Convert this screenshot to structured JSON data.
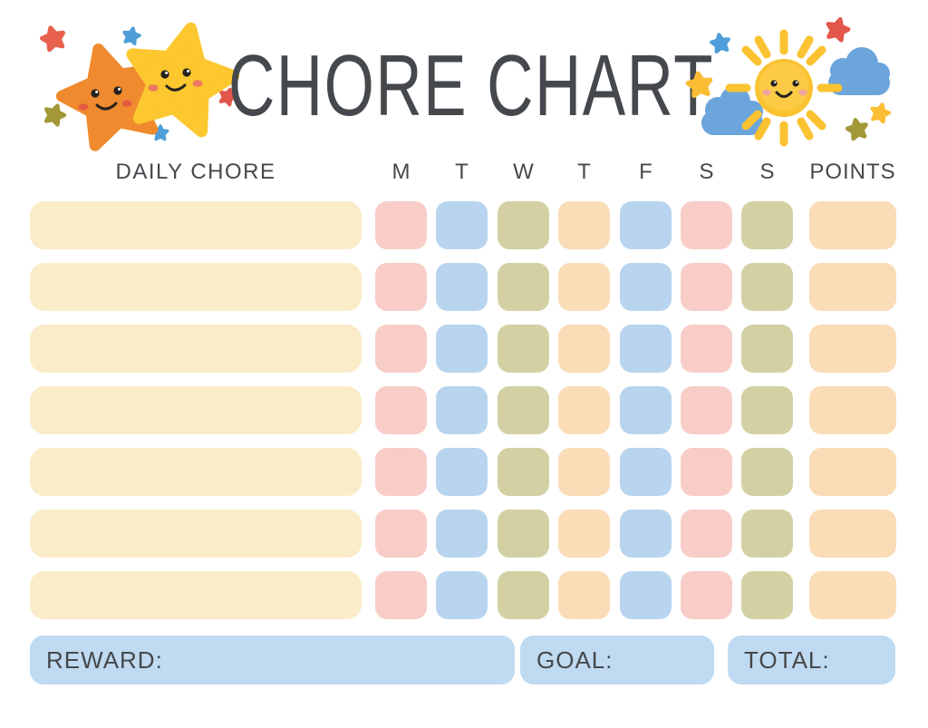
{
  "page": {
    "background_color": "#FFFFFF",
    "text_color": "#45484C"
  },
  "header": {
    "title": "CHORE CHART"
  },
  "table": {
    "chore_column_label": "DAILY CHORE",
    "day_headers": [
      "M",
      "T",
      "W",
      "T",
      "F",
      "S",
      "S"
    ],
    "points_label": "POINTS",
    "chore_bar_color": "#FAECC8",
    "day_cell_colors": [
      "#F8CDC8",
      "#B8D4EE",
      "#D3D1A4",
      "#FADCB7",
      "#B8D4EE",
      "#F8CDC8",
      "#D3D1A4"
    ],
    "points_cell_color": "#FADCB7",
    "rows": [
      {
        "chore": "",
        "points": ""
      },
      {
        "chore": "",
        "points": ""
      },
      {
        "chore": "",
        "points": ""
      },
      {
        "chore": "",
        "points": ""
      },
      {
        "chore": "",
        "points": ""
      },
      {
        "chore": "",
        "points": ""
      },
      {
        "chore": "",
        "points": ""
      }
    ]
  },
  "footer": {
    "reward_label": "REWARD:",
    "goal_label": "GOAL:",
    "total_label": "TOTAL:",
    "box_color": "#BFDAF1",
    "reward_value": "",
    "goal_value": "",
    "total_value": ""
  },
  "illustrations": {
    "left": "two-smiling-stars",
    "right": "smiling-sun-with-clouds",
    "palette": {
      "orange_star": "#EF8A2E",
      "yellow_star": "#FCC72F",
      "small_blue": "#4F9DD9",
      "small_red": "#E2574A",
      "small_olive": "#A29838",
      "cloud_blue": "#6BA5DC",
      "sun_yellow": "#FBC232"
    }
  }
}
